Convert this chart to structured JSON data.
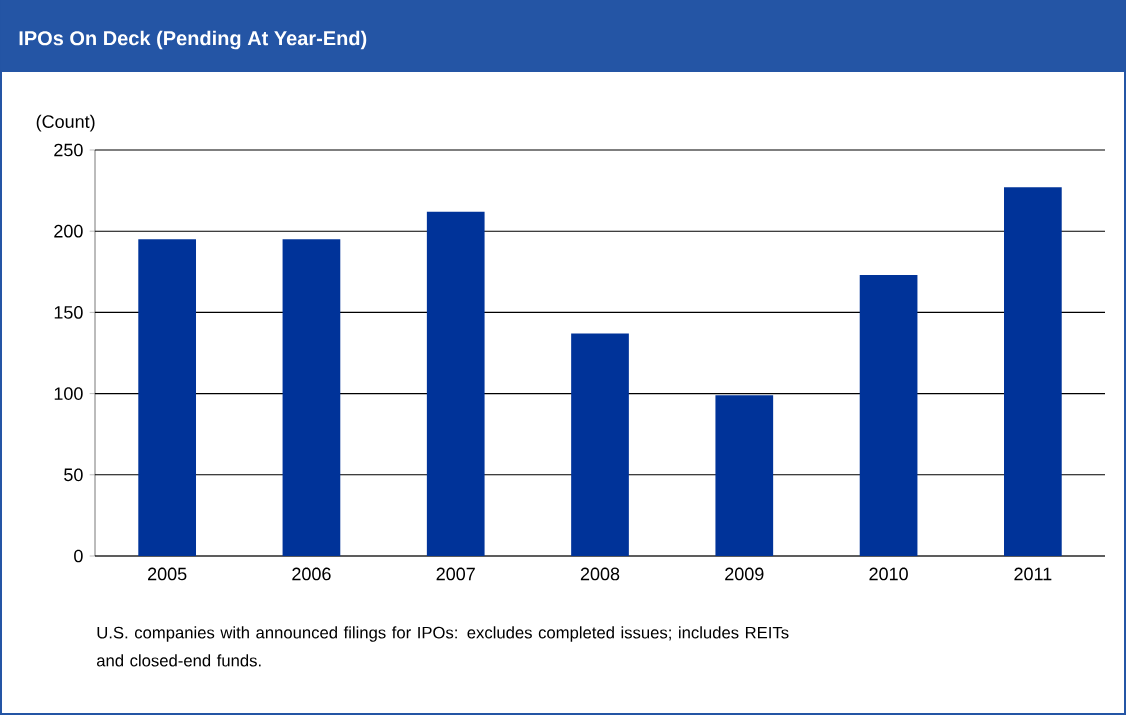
{
  "chart_data": {
    "type": "bar",
    "title": "IPOs On Deck (Pending At Year-End)",
    "ylabel": "(Count)",
    "categories": [
      "2005",
      "2006",
      "2007",
      "2008",
      "2009",
      "2010",
      "2011"
    ],
    "values": [
      195,
      195,
      212,
      137,
      99,
      173,
      227
    ],
    "color": "#003399",
    "ylim": [
      0,
      250
    ],
    "yticks": [
      0,
      50,
      100,
      150,
      200,
      250
    ],
    "grid": "y",
    "annotations": [
      "U.S. companies with announced filings for IPOs: excludes completed issues; includes REITs and closed-end funds."
    ]
  }
}
